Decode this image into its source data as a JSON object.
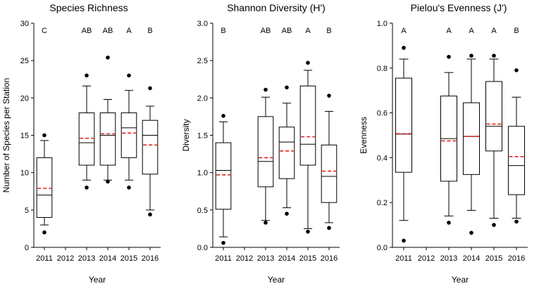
{
  "chart_data": [
    {
      "type": "box",
      "title": "Species Richness",
      "xlabel": "Year",
      "ylabel": "Number of Species per Station",
      "ylim": [
        0,
        30
      ],
      "yticks": [
        0,
        5,
        10,
        15,
        20,
        25,
        30
      ],
      "categories": [
        "2011",
        "2012",
        "2013",
        "2014",
        "2015",
        "2016"
      ],
      "boxes": [
        {
          "year": "2011",
          "letter": "C",
          "q1": 4.0,
          "median": 7.0,
          "q3": 12.0,
          "mean": 7.9,
          "whisker_low": 3.0,
          "whisker_high": 14.3,
          "outliers": [
            2.0,
            15.0
          ]
        },
        {
          "year": "2012",
          "letter": "",
          "empty": true
        },
        {
          "year": "2013",
          "letter": "AB",
          "q1": 11.0,
          "median": 14.0,
          "q3": 18.0,
          "mean": 14.6,
          "whisker_low": 9.0,
          "whisker_high": 21.6,
          "outliers": [
            8.0,
            23.0
          ]
        },
        {
          "year": "2014",
          "letter": "AB",
          "q1": 11.0,
          "median": 15.0,
          "q3": 18.0,
          "mean": 15.2,
          "whisker_low": 9.0,
          "whisker_high": 19.8,
          "outliers": [
            8.8,
            25.4
          ]
        },
        {
          "year": "2015",
          "letter": "A",
          "q1": 12.0,
          "median": 16.0,
          "q3": 18.0,
          "mean": 15.3,
          "whisker_low": 9.0,
          "whisker_high": 21.0,
          "outliers": [
            8.0,
            23.0
          ]
        },
        {
          "year": "2016",
          "letter": "B",
          "q1": 9.8,
          "median": 15.0,
          "q3": 17.0,
          "mean": 13.7,
          "whisker_low": 5.0,
          "whisker_high": 18.9,
          "outliers": [
            4.4,
            21.3
          ]
        }
      ]
    },
    {
      "type": "box",
      "title": "Shannon Diversity (H')",
      "xlabel": "Year",
      "ylabel": "Diversity",
      "ylim": [
        0,
        3.0
      ],
      "yticks": [
        "0.0",
        "0.5",
        "1.0",
        "1.5",
        "2.0",
        "2.5",
        "3.0"
      ],
      "categories": [
        "2011",
        "2012",
        "2013",
        "2014",
        "2015",
        "2016"
      ],
      "boxes": [
        {
          "year": "2011",
          "letter": "B",
          "q1": 0.51,
          "median": 1.03,
          "q3": 1.4,
          "mean": 0.97,
          "whisker_low": 0.14,
          "whisker_high": 1.68,
          "outliers": [
            0.06,
            1.76
          ]
        },
        {
          "year": "2012",
          "letter": "",
          "empty": true
        },
        {
          "year": "2013",
          "letter": "AB",
          "q1": 0.81,
          "median": 1.15,
          "q3": 1.75,
          "mean": 1.2,
          "whisker_low": 0.36,
          "whisker_high": 2.01,
          "outliers": [
            0.33,
            2.11
          ]
        },
        {
          "year": "2014",
          "letter": "AB",
          "q1": 0.92,
          "median": 1.41,
          "q3": 1.61,
          "mean": 1.29,
          "whisker_low": 0.53,
          "whisker_high": 1.93,
          "outliers": [
            0.45,
            2.14
          ]
        },
        {
          "year": "2015",
          "letter": "A",
          "q1": 1.1,
          "median": 1.38,
          "q3": 2.16,
          "mean": 1.48,
          "whisker_low": 0.25,
          "whisker_high": 2.37,
          "outliers": [
            0.21,
            2.47
          ]
        },
        {
          "year": "2016",
          "letter": "B",
          "q1": 0.6,
          "median": 0.95,
          "q3": 1.37,
          "mean": 1.02,
          "whisker_low": 0.33,
          "whisker_high": 1.82,
          "outliers": [
            0.26,
            2.03
          ]
        }
      ]
    },
    {
      "type": "box",
      "title": "Pielou's Evenness (J')",
      "xlabel": "Year",
      "ylabel": "Evenness",
      "ylim": [
        0,
        1.0
      ],
      "yticks": [
        "0.0",
        "0.2",
        "0.4",
        "0.6",
        "0.8",
        "1.0"
      ],
      "categories": [
        "2011",
        "2012",
        "2013",
        "2014",
        "2015",
        "2016"
      ],
      "boxes": [
        {
          "year": "2011",
          "letter": "A",
          "q1": 0.335,
          "median": 0.505,
          "q3": 0.755,
          "mean": 0.507,
          "whisker_low": 0.12,
          "whisker_high": 0.84,
          "outliers": [
            0.03,
            0.89
          ]
        },
        {
          "year": "2012",
          "letter": "",
          "empty": true
        },
        {
          "year": "2013",
          "letter": "A",
          "q1": 0.295,
          "median": 0.485,
          "q3": 0.675,
          "mean": 0.475,
          "whisker_low": 0.14,
          "whisker_high": 0.78,
          "outliers": [
            0.11,
            0.85
          ]
        },
        {
          "year": "2014",
          "letter": "A",
          "q1": 0.325,
          "median": 0.495,
          "q3": 0.645,
          "mean": 0.495,
          "whisker_low": 0.165,
          "whisker_high": 0.84,
          "outliers": [
            0.065,
            0.855
          ]
        },
        {
          "year": "2015",
          "letter": "A",
          "q1": 0.43,
          "median": 0.54,
          "q3": 0.74,
          "mean": 0.55,
          "whisker_low": 0.13,
          "whisker_high": 0.84,
          "outliers": [
            0.1,
            0.855
          ]
        },
        {
          "year": "2016",
          "letter": "B",
          "q1": 0.235,
          "median": 0.365,
          "q3": 0.54,
          "mean": 0.405,
          "whisker_low": 0.13,
          "whisker_high": 0.67,
          "outliers": [
            0.115,
            0.79
          ]
        }
      ]
    }
  ],
  "style": {
    "mean_color": "#e0201b",
    "line_color": "#000000"
  }
}
